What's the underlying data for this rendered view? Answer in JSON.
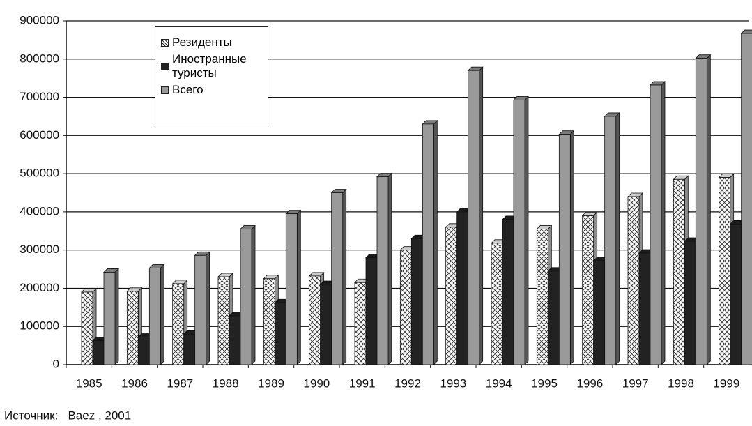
{
  "chart_data": {
    "type": "bar3d",
    "categories": [
      "1985",
      "1986",
      "1987",
      "1988",
      "1989",
      "1990",
      "1991",
      "1992",
      "1993",
      "1994",
      "1995",
      "1996",
      "1997",
      "1998",
      "1999"
    ],
    "series": [
      {
        "name": "Резиденты",
        "color": "#ffffff",
        "pattern": "crosshatch",
        "values": [
          190000,
          192000,
          212000,
          230000,
          225000,
          232000,
          215000,
          300000,
          360000,
          318000,
          355000,
          390000,
          440000,
          485000,
          490000
        ]
      },
      {
        "name": "Иностранные туристы",
        "color": "#222222",
        "values": [
          63000,
          72000,
          80000,
          128000,
          162000,
          210000,
          280000,
          330000,
          400000,
          380000,
          245000,
          272000,
          292000,
          323000,
          368000
        ]
      },
      {
        "name": "Всего",
        "color": "#9a9a9a",
        "values": [
          242000,
          253000,
          286000,
          355000,
          395000,
          450000,
          492000,
          630000,
          770000,
          693000,
          603000,
          650000,
          732000,
          802000,
          867000
        ]
      }
    ],
    "ylim": [
      0,
      900000
    ],
    "yticks": [
      0,
      100000,
      200000,
      300000,
      400000,
      500000,
      600000,
      700000,
      800000,
      900000
    ],
    "grid": true,
    "source": "Источник:   Baez , 2001"
  }
}
